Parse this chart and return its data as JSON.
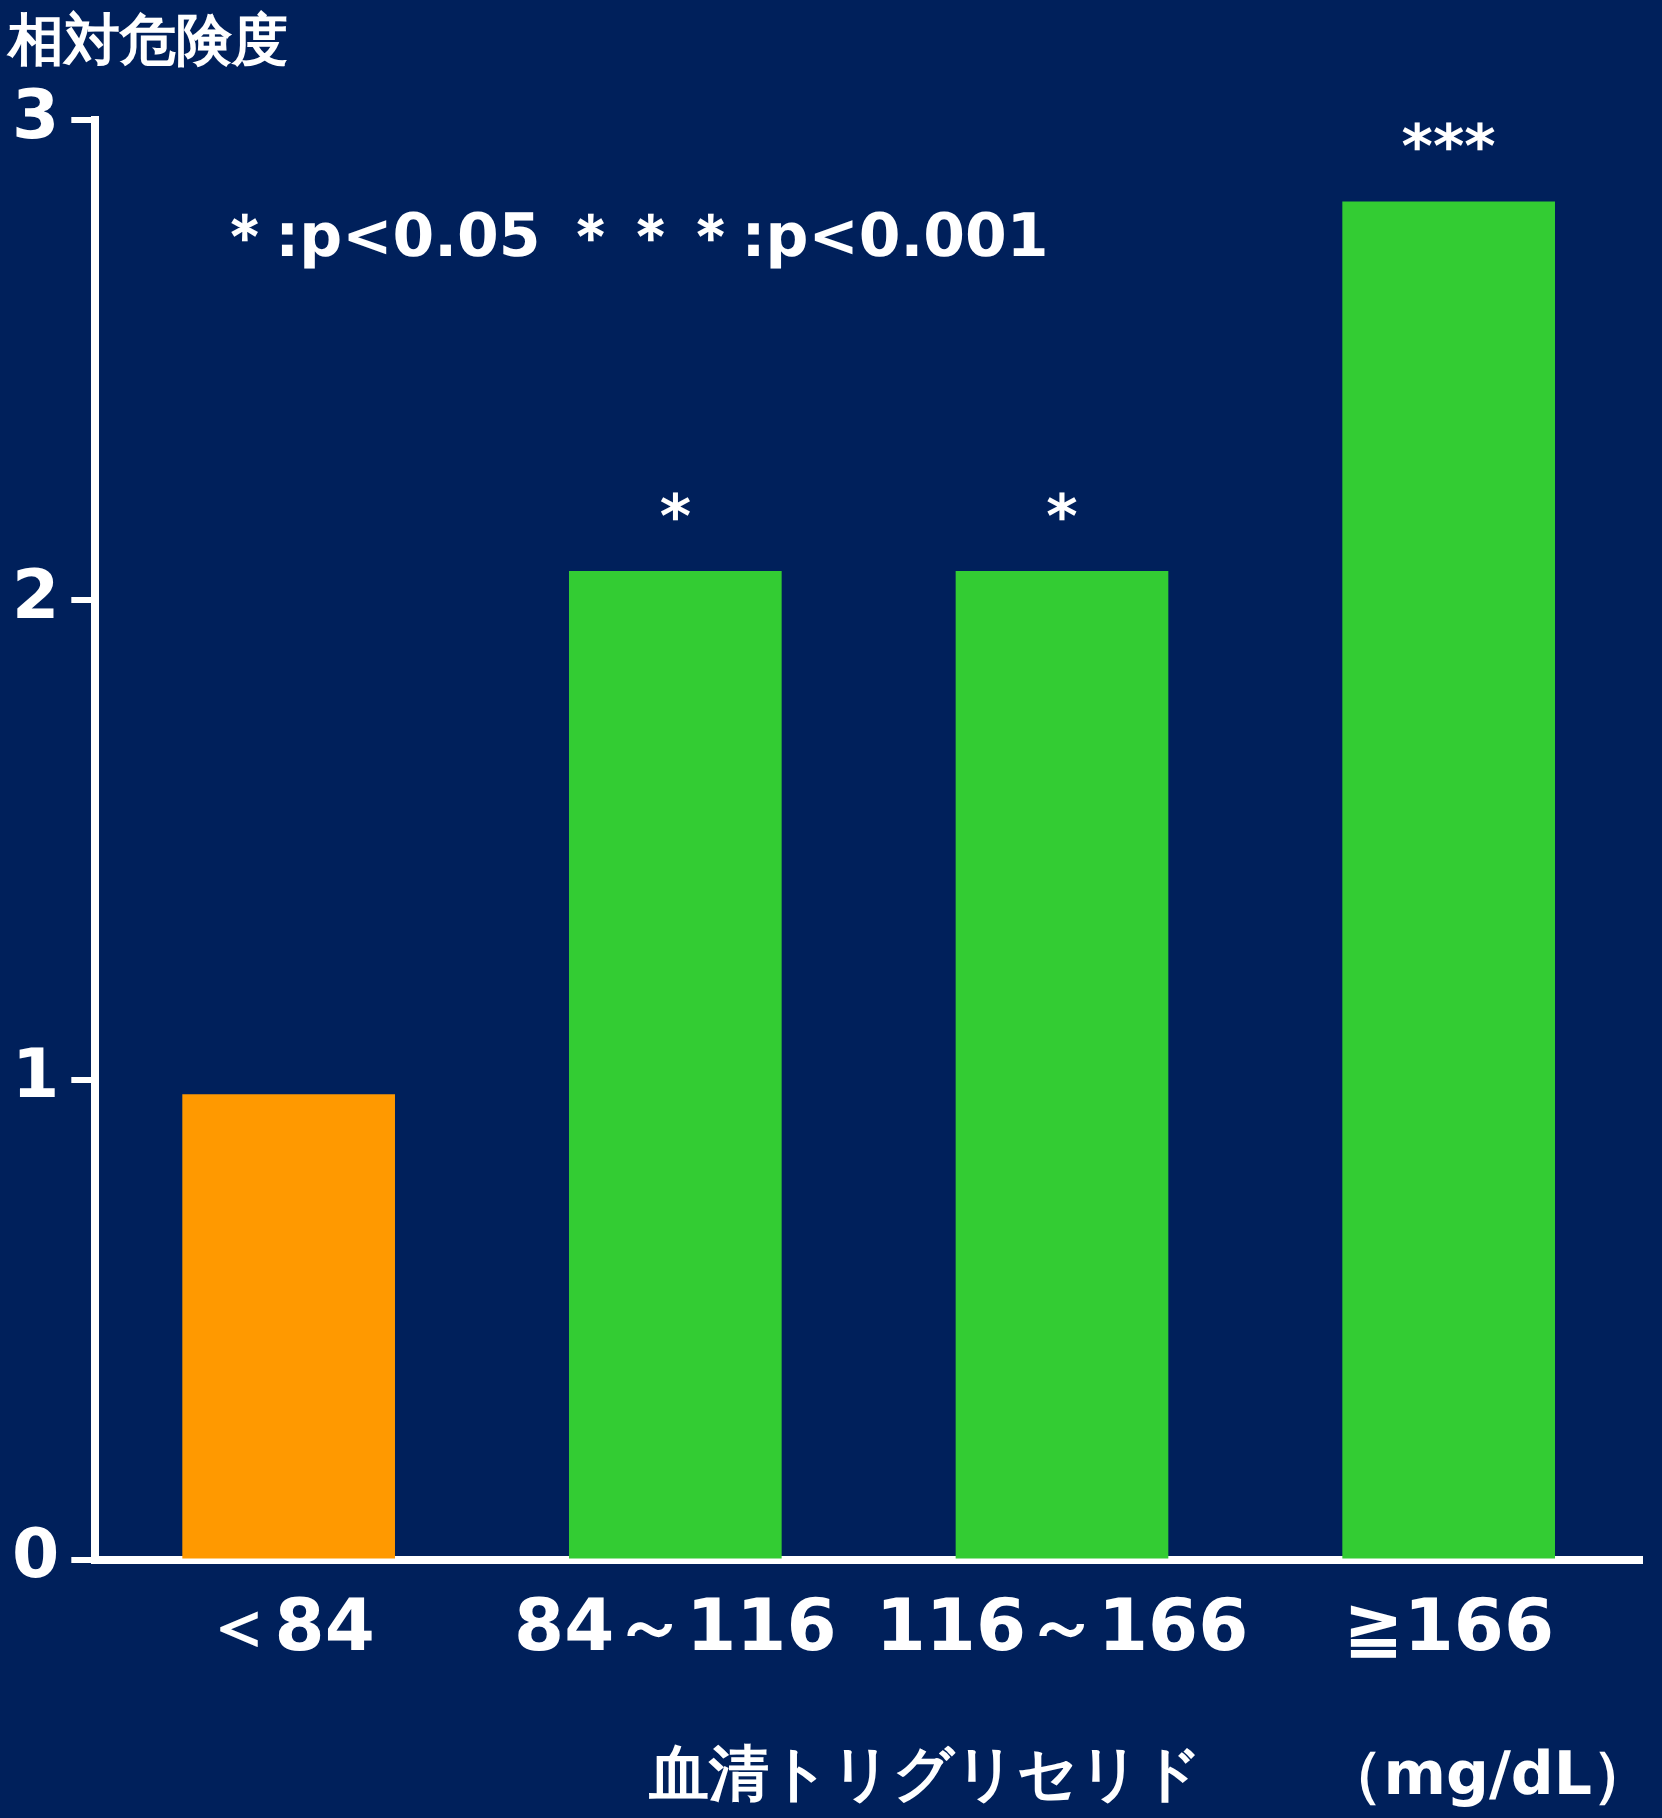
{
  "chart_data": {
    "type": "bar",
    "ylabel": "相対危険度",
    "xlabel": "血清トリグリセリド　　（mg/dL）",
    "categories": [
      "＜84",
      "84～116",
      "116～166",
      "≧166"
    ],
    "values": [
      0.97,
      2.06,
      2.06,
      2.83
    ],
    "colors": [
      "#ff9900",
      "#33cc33",
      "#33cc33",
      "#33cc33"
    ],
    "ylim": [
      0,
      3
    ],
    "yticks": [
      0,
      1,
      2,
      3
    ],
    "grid": false,
    "legend": false,
    "annotations": [
      "＊:p<0.05 ＊＊＊:p<0.001",
      {
        "text": "*",
        "x": "84～116",
        "y": 2.06
      },
      {
        "text": "*",
        "x": "116～166",
        "y": 2.06
      },
      {
        "text": "***",
        "x": "≧166",
        "y": 2.83
      }
    ]
  }
}
